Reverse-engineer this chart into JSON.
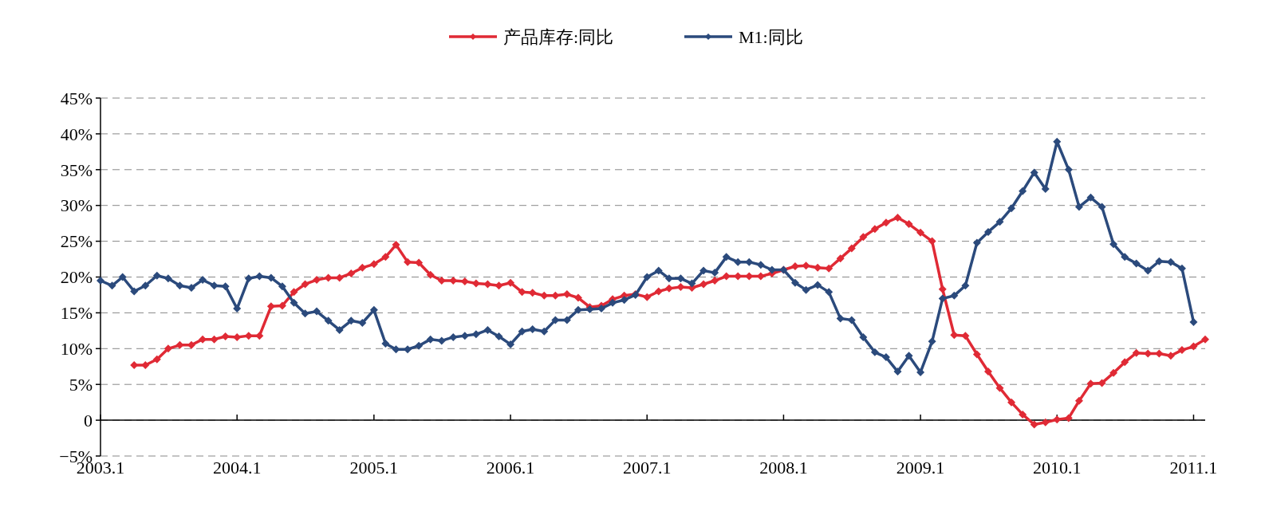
{
  "chart_data": {
    "type": "line",
    "legend": "top",
    "grid": "y",
    "marker": "diamond",
    "line_style": "solid",
    "xlim": [
      "2003-01",
      "2011-02"
    ],
    "xticks": [
      {
        "value": "2003-01",
        "label": "2003.1"
      },
      {
        "value": "2004-01",
        "label": "2004.1"
      },
      {
        "value": "2005-01",
        "label": "2005.1"
      },
      {
        "value": "2006-01",
        "label": "2006.1"
      },
      {
        "value": "2007-01",
        "label": "2007.1"
      },
      {
        "value": "2008-01",
        "label": "2008.1"
      },
      {
        "value": "2009-01",
        "label": "2009.1"
      },
      {
        "value": "2010-01",
        "label": "2010.1"
      },
      {
        "value": "2011-01",
        "label": "2011.1"
      }
    ],
    "ylim": [
      -5,
      45
    ],
    "yticks": [
      {
        "value": -5,
        "label": "−5%"
      },
      0,
      {
        "value": 5,
        "label": "5%"
      },
      {
        "value": 10,
        "label": "10%"
      },
      {
        "value": 15,
        "label": "15%"
      },
      {
        "value": 20,
        "label": "20%"
      },
      {
        "value": 25,
        "label": "25%"
      },
      {
        "value": 30,
        "label": "30%"
      },
      {
        "value": 35,
        "label": "35%"
      },
      {
        "value": 40,
        "label": "40%"
      },
      {
        "value": 45,
        "label": "45%"
      }
    ],
    "series": [
      {
        "name": "产品库存:同比",
        "color": "#e02a35",
        "x": [
          "2003-04",
          "2003-05",
          "2003-06",
          "2003-07",
          "2003-08",
          "2003-09",
          "2003-10",
          "2003-11",
          "2003-12",
          "2004-01",
          "2004-02",
          "2004-03",
          "2004-04",
          "2004-05",
          "2004-06",
          "2004-07",
          "2004-08",
          "2004-09",
          "2004-10",
          "2004-11",
          "2004-12",
          "2005-01",
          "2005-02",
          "2005-03",
          "2005-04",
          "2005-05",
          "2005-06",
          "2005-07",
          "2005-08",
          "2005-09",
          "2005-10",
          "2005-11",
          "2005-12",
          "2006-01",
          "2006-02",
          "2006-03",
          "2006-04",
          "2006-05",
          "2006-06",
          "2006-07",
          "2006-08",
          "2006-09",
          "2006-10",
          "2006-11",
          "2006-12",
          "2007-01",
          "2007-02",
          "2007-03",
          "2007-04",
          "2007-05",
          "2007-06",
          "2007-07",
          "2007-08",
          "2007-09",
          "2007-10",
          "2007-11",
          "2007-12",
          "2008-01",
          "2008-02",
          "2008-03",
          "2008-04",
          "2008-05",
          "2008-06",
          "2008-07",
          "2008-08",
          "2008-09",
          "2008-10",
          "2008-11",
          "2008-12",
          "2009-01",
          "2009-02",
          "2009-03",
          "2009-04",
          "2009-05",
          "2009-06",
          "2009-07",
          "2009-08",
          "2009-09",
          "2009-10",
          "2009-11",
          "2009-12",
          "2010-01",
          "2010-02",
          "2010-03",
          "2010-04",
          "2010-05",
          "2010-06",
          "2010-07",
          "2010-08",
          "2010-09",
          "2010-10",
          "2010-11",
          "2010-12",
          "2011-01",
          "2011-02"
        ],
        "values": [
          7.7,
          7.7,
          8.5,
          10.0,
          10.5,
          10.5,
          11.3,
          11.3,
          11.7,
          11.6,
          11.8,
          11.8,
          15.9,
          16.0,
          17.9,
          19.0,
          19.6,
          19.9,
          19.9,
          20.5,
          21.3,
          21.8,
          22.8,
          24.5,
          22.1,
          22.0,
          20.3,
          19.5,
          19.5,
          19.4,
          19.1,
          19.0,
          18.8,
          19.2,
          17.9,
          17.8,
          17.4,
          17.4,
          17.6,
          17.1,
          15.8,
          16.0,
          16.9,
          17.4,
          17.6,
          17.2,
          18.0,
          18.4,
          18.6,
          18.5,
          19.0,
          19.5,
          20.1,
          20.1,
          20.1,
          20.1,
          20.5,
          21.0,
          21.5,
          21.6,
          21.3,
          21.2,
          22.6,
          24.0,
          25.6,
          26.7,
          27.6,
          28.3,
          27.4,
          26.2,
          25.0,
          18.3,
          11.9,
          11.8,
          9.2,
          6.8,
          4.5,
          2.5,
          0.8,
          -0.6,
          -0.3,
          0.1,
          0.3,
          2.7,
          5.1,
          5.2,
          6.6,
          8.1,
          9.4,
          9.3,
          9.3,
          9.0,
          9.8,
          10.3,
          11.3
        ]
      },
      {
        "name": "M1:同比",
        "color": "#2b4a7c",
        "x": [
          "2003-01",
          "2003-02",
          "2003-03",
          "2003-04",
          "2003-05",
          "2003-06",
          "2003-07",
          "2003-08",
          "2003-09",
          "2003-10",
          "2003-11",
          "2003-12",
          "2004-01",
          "2004-02",
          "2004-03",
          "2004-04",
          "2004-05",
          "2004-06",
          "2004-07",
          "2004-08",
          "2004-09",
          "2004-10",
          "2004-11",
          "2004-12",
          "2005-01",
          "2005-02",
          "2005-03",
          "2005-04",
          "2005-05",
          "2005-06",
          "2005-07",
          "2005-08",
          "2005-09",
          "2005-10",
          "2005-11",
          "2005-12",
          "2006-01",
          "2006-02",
          "2006-03",
          "2006-04",
          "2006-05",
          "2006-06",
          "2006-07",
          "2006-08",
          "2006-09",
          "2006-10",
          "2006-11",
          "2006-12",
          "2007-01",
          "2007-02",
          "2007-03",
          "2007-04",
          "2007-05",
          "2007-06",
          "2007-07",
          "2007-08",
          "2007-09",
          "2007-10",
          "2007-11",
          "2007-12",
          "2008-01",
          "2008-02",
          "2008-03",
          "2008-04",
          "2008-05",
          "2008-06",
          "2008-07",
          "2008-08",
          "2008-09",
          "2008-10",
          "2008-11",
          "2008-12",
          "2009-01",
          "2009-02",
          "2009-03",
          "2009-04",
          "2009-05",
          "2009-06",
          "2009-07",
          "2009-08",
          "2009-09",
          "2009-10",
          "2009-11",
          "2009-12",
          "2010-01",
          "2010-02",
          "2010-03",
          "2010-04",
          "2010-05",
          "2010-06",
          "2010-07",
          "2010-08",
          "2010-09",
          "2010-10",
          "2010-11",
          "2010-12",
          "2011-01"
        ],
        "values": [
          19.5,
          18.8,
          20.0,
          18.0,
          18.8,
          20.2,
          19.8,
          18.8,
          18.5,
          19.6,
          18.8,
          18.7,
          15.6,
          19.8,
          20.1,
          19.9,
          18.7,
          16.4,
          14.9,
          15.2,
          13.9,
          12.6,
          13.9,
          13.6,
          15.4,
          10.7,
          9.9,
          9.9,
          10.4,
          11.3,
          11.1,
          11.6,
          11.8,
          12.0,
          12.6,
          11.7,
          10.6,
          12.4,
          12.7,
          12.4,
          14.0,
          14.0,
          15.4,
          15.5,
          15.6,
          16.4,
          16.8,
          17.5,
          20.0,
          20.9,
          19.8,
          19.8,
          19.1,
          20.9,
          20.6,
          22.8,
          22.1,
          22.1,
          21.7,
          21.0,
          21.0,
          19.2,
          18.2,
          18.9,
          17.9,
          14.2,
          14.0,
          11.6,
          9.5,
          8.8,
          6.8,
          9.0,
          6.7,
          11.0,
          17.0,
          17.4,
          18.8,
          24.8,
          26.3,
          27.7,
          29.6,
          32.0,
          34.6,
          32.3,
          38.9,
          35.0,
          29.8,
          31.1,
          29.8,
          24.6,
          22.8,
          21.9,
          20.9,
          22.2,
          22.1,
          21.2,
          13.7
        ]
      }
    ]
  }
}
